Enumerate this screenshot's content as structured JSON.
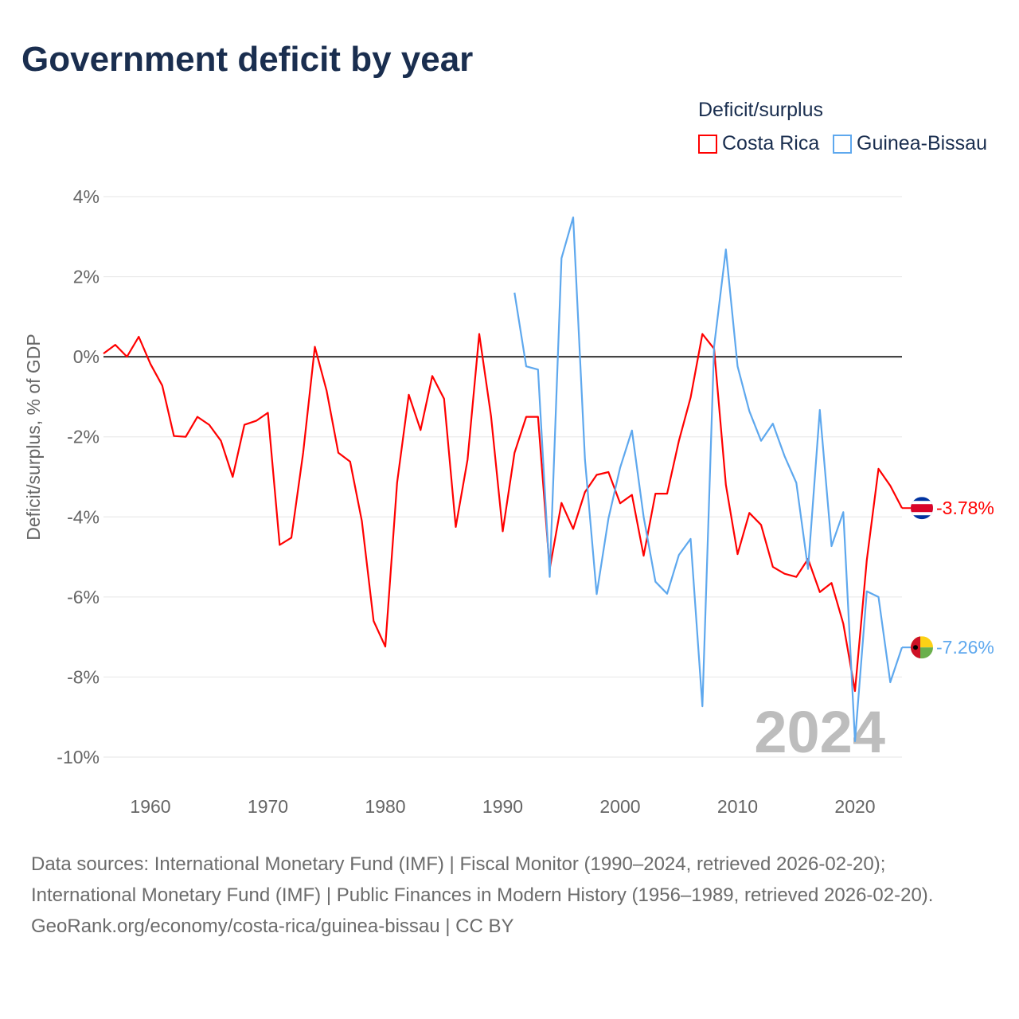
{
  "title": "Government deficit by year",
  "legend": {
    "title": "Deficit/surplus",
    "items": [
      {
        "name": "Costa Rica",
        "color": "#ff0000"
      },
      {
        "name": "Guinea-Bissau",
        "color": "#5ea8ee"
      }
    ]
  },
  "chart_data": {
    "type": "line",
    "title": "Government deficit by year",
    "xlabel": "",
    "ylabel": "Deficit/surplus, % of GDP",
    "xlim": [
      1956,
      2024
    ],
    "ylim": [
      -10,
      4
    ],
    "xticks": [
      1960,
      1970,
      1980,
      1990,
      2000,
      2010,
      2020
    ],
    "xtick_labels": [
      "1960",
      "1970",
      "1980",
      "1990",
      "2000",
      "2010",
      "2020"
    ],
    "yticks": [
      4,
      2,
      0,
      -2,
      -4,
      -6,
      -8,
      -10
    ],
    "ytick_labels": [
      "4%",
      "2%",
      "0%",
      "-2%",
      "-4%",
      "-6%",
      "-8%",
      "-10%"
    ],
    "grid": true,
    "legend_position": "top-right",
    "annotation": "2024",
    "series": [
      {
        "name": "Costa Rica",
        "color": "#ff0000",
        "end_label": "-3.78%",
        "x": [
          1956,
          1957,
          1958,
          1959,
          1960,
          1961,
          1962,
          1963,
          1964,
          1965,
          1966,
          1967,
          1968,
          1969,
          1970,
          1971,
          1972,
          1973,
          1974,
          1975,
          1976,
          1977,
          1978,
          1979,
          1980,
          1981,
          1982,
          1983,
          1984,
          1985,
          1986,
          1987,
          1988,
          1989,
          1990,
          1991,
          1992,
          1993,
          1994,
          1995,
          1996,
          1997,
          1998,
          1999,
          2000,
          2001,
          2002,
          2003,
          2004,
          2005,
          2006,
          2007,
          2008,
          2009,
          2010,
          2011,
          2012,
          2013,
          2014,
          2015,
          2016,
          2017,
          2018,
          2019,
          2020,
          2021,
          2022,
          2023,
          2024
        ],
        "values": [
          0.08,
          0.3,
          0,
          0.5,
          -0.18,
          -0.72,
          -1.98,
          -2.0,
          -1.5,
          -1.7,
          -2.1,
          -3.0,
          -1.7,
          -1.6,
          -1.4,
          -4.7,
          -4.52,
          -2.4,
          0.25,
          -0.85,
          -2.4,
          -2.62,
          -4.1,
          -6.6,
          -7.24,
          -3.15,
          -0.95,
          -1.83,
          -0.48,
          -1.05,
          -4.25,
          -2.57,
          0.57,
          -1.48,
          -4.36,
          -2.4,
          -1.5,
          -1.5,
          -5.3,
          -3.65,
          -4.3,
          -3.38,
          -2.95,
          -2.88,
          -3.66,
          -3.45,
          -4.97,
          -3.42,
          -3.42,
          -2.1,
          -1.02,
          0.57,
          0.2,
          -3.2,
          -4.93,
          -3.9,
          -4.2,
          -5.25,
          -5.42,
          -5.5,
          -5.05,
          -5.88,
          -5.65,
          -6.67,
          -8.35,
          -5.08,
          -2.8,
          -3.22,
          -3.78
        ]
      },
      {
        "name": "Guinea-Bissau",
        "color": "#5ea8ee",
        "end_label": "-7.26%",
        "x": [
          1991,
          1992,
          1993,
          1994,
          1995,
          1996,
          1997,
          1998,
          1999,
          2000,
          2001,
          2002,
          2003,
          2004,
          2005,
          2006,
          2007,
          2008,
          2009,
          2010,
          2011,
          2012,
          2013,
          2014,
          2015,
          2016,
          2017,
          2018,
          2019,
          2020,
          2021,
          2022,
          2023,
          2024
        ],
        "values": [
          1.6,
          -0.24,
          -0.32,
          -5.5,
          2.46,
          3.48,
          -2.57,
          -5.93,
          -4.04,
          -2.77,
          -1.84,
          -4.0,
          -5.62,
          -5.92,
          -4.95,
          -4.55,
          -8.73,
          0.26,
          2.68,
          -0.24,
          -1.36,
          -2.1,
          -1.67,
          -2.48,
          -3.15,
          -5.3,
          -1.33,
          -4.73,
          -3.88,
          -9.6,
          -5.86,
          -6.0,
          -8.13,
          -7.26
        ]
      }
    ]
  },
  "footer": {
    "line1": "Data sources: International Monetary Fund (IMF) | Fiscal Monitor (1990–2024, retrieved 2026-02-20); International Monetary Fund (IMF) | Public Finances in Modern History (1956–1989, retrieved 2026-02-20).",
    "line2": "GeoRank.org/economy/costa-rica/guinea-bissau | CC BY"
  }
}
